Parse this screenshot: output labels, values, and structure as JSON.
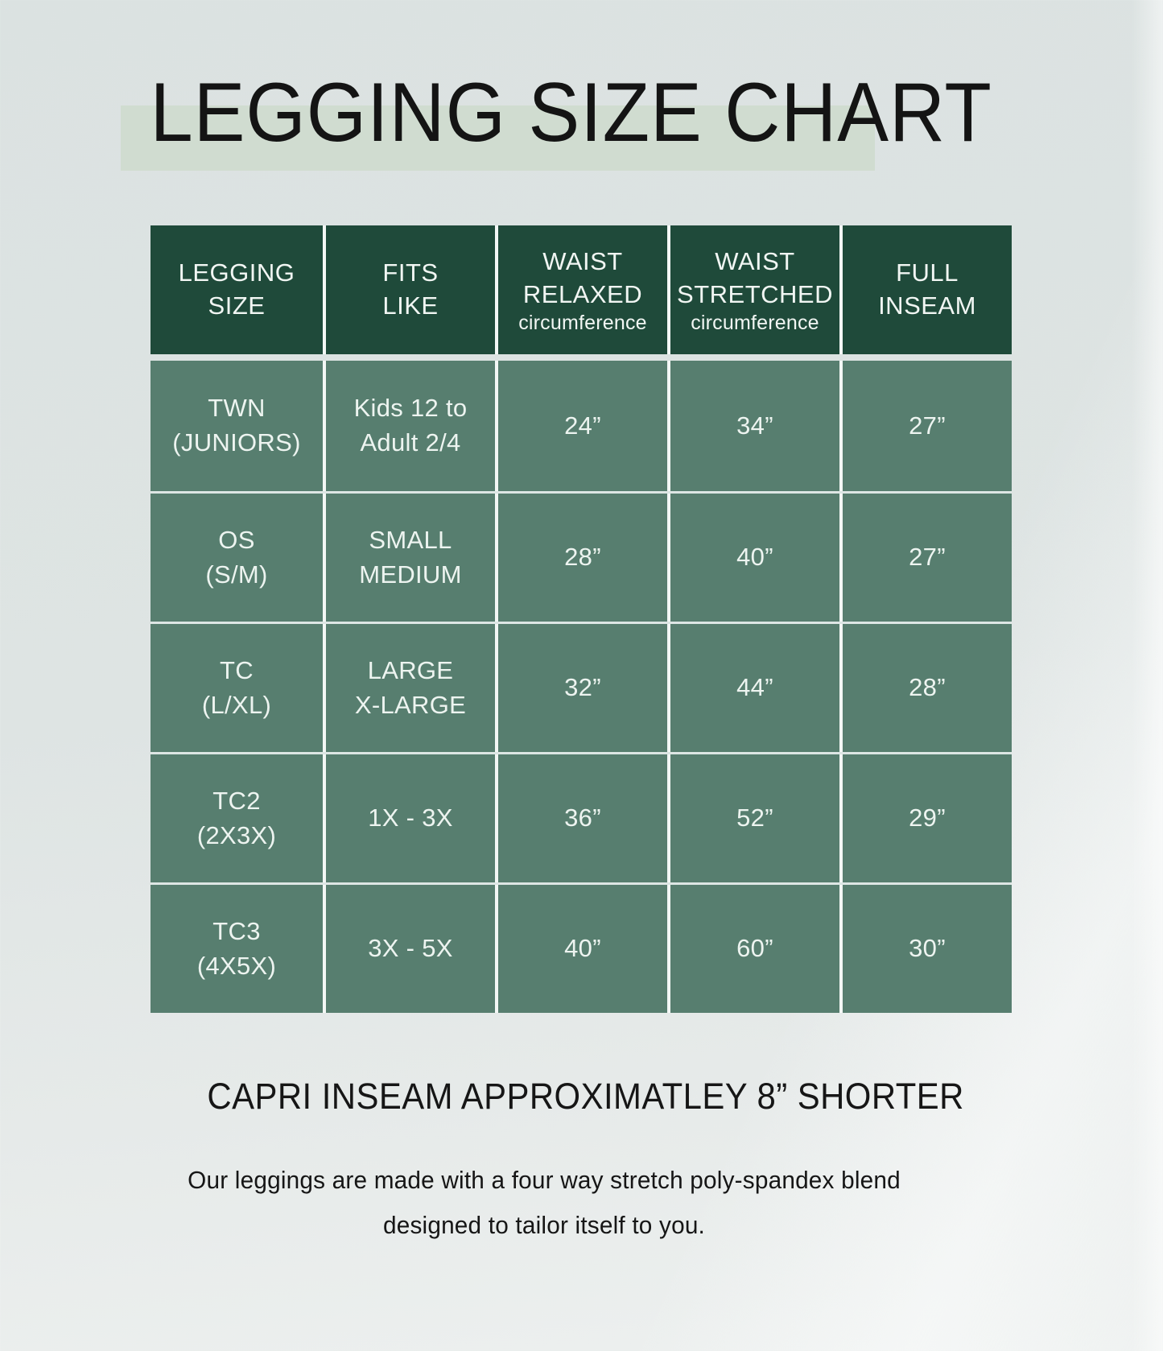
{
  "page": {
    "title": "LEGGING SIZE CHART",
    "capri_note": "CAPRI INSEAM APPROXIMATLEY 8” SHORTER",
    "description_line1": "Our leggings are made with a four way stretch poly-spandex blend",
    "description_line2": "designed to tailor itself to you."
  },
  "colors": {
    "background": "#dee4e3",
    "title_highlight": "#cedbcd",
    "header_bg": "#1f4a3a",
    "cell_bg": "#577e6f",
    "header_text": "#f1f6f3",
    "cell_text": "#edf4f0",
    "title_text": "#141414"
  },
  "table": {
    "columns": [
      {
        "line1": "LEGGING",
        "line2": "SIZE",
        "sub": ""
      },
      {
        "line1": "FITS",
        "line2": "LIKE",
        "sub": ""
      },
      {
        "line1": "WAIST",
        "line2": "RELAXED",
        "sub": "circumference"
      },
      {
        "line1": "WAIST",
        "line2": "STRETCHED",
        "sub": "circumference"
      },
      {
        "line1": "FULL",
        "line2": "INSEAM",
        "sub": ""
      }
    ],
    "rows": [
      {
        "size1": "TWN",
        "size2": "(JUNIORS)",
        "fits1": "Kids 12 to",
        "fits2": "Adult 2/4",
        "relaxed": "24”",
        "stretched": "34”",
        "inseam": "27”"
      },
      {
        "size1": "OS",
        "size2": "(S/M)",
        "fits1": "SMALL",
        "fits2": "MEDIUM",
        "relaxed": "28”",
        "stretched": "40”",
        "inseam": "27”"
      },
      {
        "size1": "TC",
        "size2": "(L/XL)",
        "fits1": "LARGE",
        "fits2": "X-LARGE",
        "relaxed": "32”",
        "stretched": "44”",
        "inseam": "28”"
      },
      {
        "size1": "TC2",
        "size2": "(2X3X)",
        "fits1": "1X - 3X",
        "fits2": "",
        "relaxed": "36”",
        "stretched": "52”",
        "inseam": "29”"
      },
      {
        "size1": "TC3",
        "size2": "(4X5X)",
        "fits1": "3X - 5X",
        "fits2": "",
        "relaxed": "40”",
        "stretched": "60”",
        "inseam": "30”"
      }
    ]
  },
  "chart_data": {
    "type": "table",
    "title": "LEGGING SIZE CHART",
    "columns": [
      "LEGGING SIZE",
      "FITS LIKE",
      "WAIST RELAXED circumference",
      "WAIST STRETCHED circumference",
      "FULL INSEAM"
    ],
    "rows": [
      [
        "TWN (JUNIORS)",
        "Kids 12 to Adult 2/4",
        "24”",
        "34”",
        "27”"
      ],
      [
        "OS (S/M)",
        "SMALL MEDIUM",
        "28”",
        "40”",
        "27”"
      ],
      [
        "TC (L/XL)",
        "LARGE X-LARGE",
        "32”",
        "44”",
        "28”"
      ],
      [
        "TC2 (2X3X)",
        "1X - 3X",
        "36”",
        "52”",
        "29”"
      ],
      [
        "TC3 (4X5X)",
        "3X - 5X",
        "40”",
        "60”",
        "30”"
      ]
    ],
    "notes": [
      "CAPRI INSEAM APPROXIMATLEY 8” SHORTER",
      "Our leggings are made with a four way stretch poly-spandex blend designed to tailor itself to you."
    ]
  }
}
